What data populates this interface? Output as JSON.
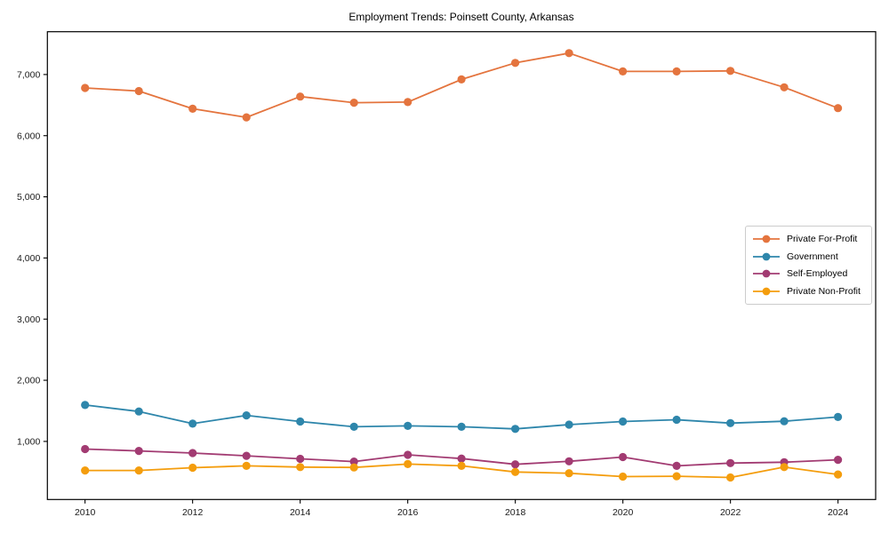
{
  "chart_data": {
    "type": "line",
    "title": "Employment Trends: Poinsett County, Arkansas",
    "xlabel": "",
    "ylabel": "",
    "x": [
      2010,
      2011,
      2012,
      2013,
      2014,
      2015,
      2016,
      2017,
      2018,
      2019,
      2020,
      2021,
      2022,
      2023,
      2024
    ],
    "x_ticks": [
      2010,
      2012,
      2014,
      2016,
      2018,
      2020,
      2022,
      2024
    ],
    "x_tick_labels": [
      "2010",
      "2012",
      "2014",
      "2016",
      "2018",
      "2020",
      "2022",
      "2024"
    ],
    "y_ticks": [
      1000,
      2000,
      3000,
      4000,
      5000,
      6000,
      7000
    ],
    "y_tick_labels": [
      "1,000",
      "2,000",
      "3,000",
      "4,000",
      "5,000",
      "6,000",
      "7,000"
    ],
    "xlim": [
      2009.3,
      2024.7
    ],
    "ylim": [
      50,
      7700
    ],
    "grid": false,
    "legend": {
      "position": "center-right",
      "border_color": "#cccccc"
    },
    "series": [
      {
        "name": "Private For-Profit",
        "color": "#E4743E",
        "values": [
          6780,
          6730,
          6440,
          6300,
          6640,
          6540,
          6550,
          6920,
          7190,
          7350,
          7050,
          7050,
          7060,
          6790,
          6450
        ]
      },
      {
        "name": "Government",
        "color": "#2E86AB",
        "values": [
          1595,
          1490,
          1290,
          1425,
          1325,
          1240,
          1255,
          1240,
          1205,
          1275,
          1325,
          1355,
          1300,
          1330,
          1400
        ]
      },
      {
        "name": "Self-Employed",
        "color": "#A23B72",
        "values": [
          875,
          845,
          810,
          765,
          715,
          670,
          780,
          720,
          625,
          675,
          745,
          600,
          645,
          660,
          700
        ]
      },
      {
        "name": "Private Non-Profit",
        "color": "#F49D0D",
        "values": [
          525,
          525,
          570,
          600,
          580,
          575,
          630,
          600,
          500,
          480,
          425,
          430,
          410,
          580,
          460
        ]
      }
    ]
  }
}
